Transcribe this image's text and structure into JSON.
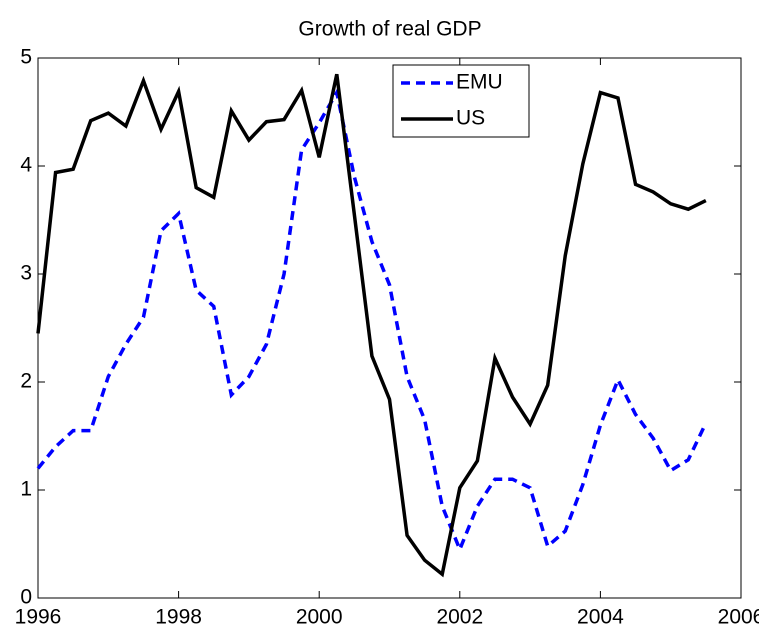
{
  "chart_data": {
    "type": "line",
    "title": "Growth of real GDP",
    "x": [
      1996,
      1996.25,
      1996.5,
      1996.75,
      1997,
      1997.25,
      1997.5,
      1997.75,
      1998,
      1998.25,
      1998.5,
      1998.75,
      1999,
      1999.25,
      1999.5,
      1999.75,
      2000,
      2000.25,
      2000.5,
      2000.75,
      2001,
      2001.25,
      2001.5,
      2001.75,
      2002,
      2002.25,
      2002.5,
      2002.75,
      2003,
      2003.25,
      2003.5,
      2003.75,
      2004,
      2004.25,
      2004.5,
      2004.75,
      2005,
      2005.25,
      2005.5
    ],
    "series": [
      {
        "name": "EMU",
        "color": "#0000ff",
        "dashed": true,
        "values": [
          1.2,
          1.4,
          1.55,
          1.55,
          2.05,
          2.35,
          2.6,
          3.4,
          3.56,
          2.85,
          2.7,
          1.88,
          2.05,
          2.35,
          3.0,
          4.15,
          4.4,
          4.68,
          3.9,
          3.3,
          2.9,
          2.05,
          1.65,
          0.85,
          0.45,
          0.85,
          1.1,
          1.1,
          1.02,
          0.48,
          0.62,
          1.05,
          1.6,
          2.02,
          1.7,
          1.48,
          1.18,
          1.28,
          1.62
        ]
      },
      {
        "name": "US",
        "color": "#000000",
        "dashed": false,
        "values": [
          2.45,
          3.94,
          3.97,
          4.42,
          4.49,
          4.37,
          4.79,
          4.34,
          4.69,
          3.8,
          3.71,
          4.51,
          4.24,
          4.41,
          4.43,
          4.7,
          4.08,
          4.85,
          3.55,
          2.24,
          1.84,
          0.58,
          0.35,
          0.22,
          1.02,
          1.27,
          2.22,
          1.86,
          1.61,
          1.97,
          3.17,
          4.02,
          4.68,
          4.63,
          3.83,
          3.76,
          3.65,
          3.6,
          3.68
        ]
      }
    ],
    "xlim": [
      1996,
      2006
    ],
    "xticks": [
      1996,
      1998,
      2000,
      2002,
      2004,
      2006
    ],
    "ylim": [
      0,
      5
    ],
    "yticks": [
      0,
      1,
      2,
      3,
      4,
      5
    ],
    "grid": false
  }
}
